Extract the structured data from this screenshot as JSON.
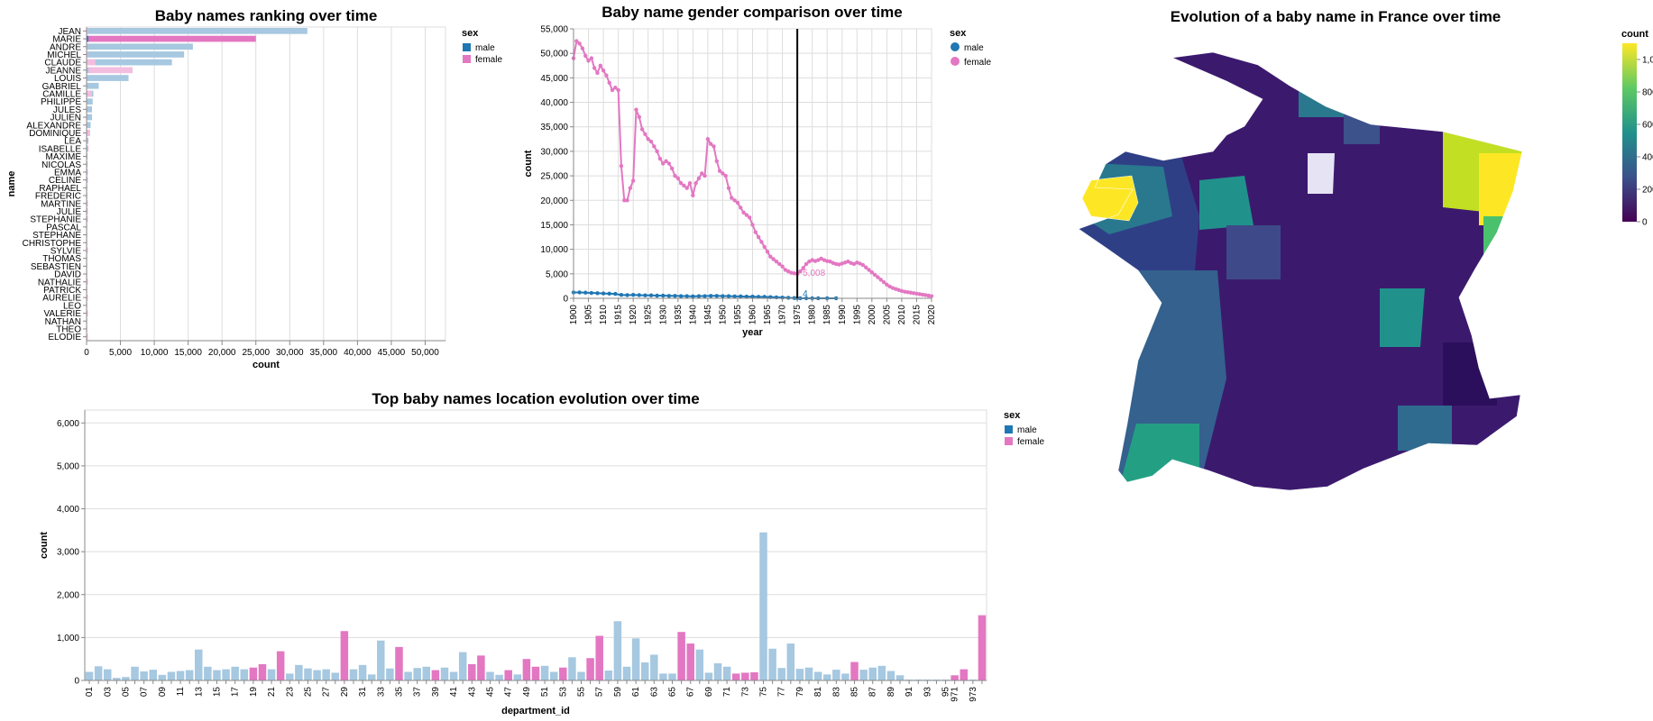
{
  "colors": {
    "male": "#1f77b4",
    "female": "#e377c2",
    "male_light": "#a6c8e0",
    "female_light": "#f3bde0"
  },
  "chart_data": [
    {
      "id": "ranking",
      "type": "bar",
      "title": "Baby names ranking over time",
      "xlabel": "count",
      "ylabel": "name",
      "xlim": [
        0,
        53000
      ],
      "xticks": [
        0,
        5000,
        10000,
        15000,
        20000,
        25000,
        30000,
        35000,
        40000,
        45000,
        50000
      ],
      "xtick_labels": [
        "0",
        "5,000",
        "10,000",
        "15,000",
        "20,000",
        "25,000",
        "30,000",
        "35,000",
        "40,000",
        "45,000",
        "50,000"
      ],
      "grid": true,
      "legend": {
        "title": "sex",
        "entries": [
          "male",
          "female"
        ],
        "position": "right"
      },
      "categories": [
        "JEAN",
        "MARIE",
        "ANDRE",
        "MICHEL",
        "CLAUDE",
        "JEANNE",
        "LOUIS",
        "GABRIEL",
        "CAMILLE",
        "PHILIPPE",
        "JULES",
        "JULIEN",
        "ALEXANDRE",
        "DOMINIQUE",
        "LEA",
        "ISABELLE",
        "MAXIME",
        "NICOLAS",
        "EMMA",
        "CELINE",
        "RAPHAEL",
        "FREDERIC",
        "MARTINE",
        "JULIE",
        "STEPHANIE",
        "PASCAL",
        "STEPHANE",
        "CHRISTOPHE",
        "SYLVIE",
        "THOMAS",
        "SEBASTIEN",
        "DAVID",
        "NATHALIE",
        "PATRICK",
        "AURELIE",
        "LEO",
        "VALERIE",
        "NATHAN",
        "THEO",
        "ELODIE"
      ],
      "series": [
        {
          "name": "male",
          "values": [
            32600,
            250,
            15700,
            14400,
            12600,
            300,
            6200,
            1800,
            1000,
            900,
            800,
            800,
            600,
            500,
            200,
            150,
            150,
            150,
            100,
            100,
            100,
            100,
            50,
            50,
            50,
            50,
            50,
            50,
            50,
            50,
            50,
            50,
            50,
            50,
            50,
            50,
            50,
            50,
            50,
            50
          ]
        },
        {
          "name": "female",
          "values": [
            200,
            25000,
            100,
            200,
            1300,
            6800,
            100,
            100,
            800,
            100,
            100,
            100,
            100,
            400,
            300,
            300,
            100,
            100,
            200,
            200,
            100,
            100,
            200,
            200,
            200,
            100,
            100,
            100,
            200,
            100,
            100,
            100,
            200,
            100,
            200,
            100,
            200,
            100,
            100,
            200
          ]
        }
      ],
      "highlighted": "MARIE"
    },
    {
      "id": "gender",
      "type": "line",
      "title": "Baby name gender comparison over time",
      "xlabel": "year",
      "ylabel": "count",
      "xlim": [
        1900,
        2020
      ],
      "ylim": [
        0,
        55000
      ],
      "yticks": [
        0,
        5000,
        10000,
        15000,
        20000,
        25000,
        30000,
        35000,
        40000,
        45000,
        50000,
        55000
      ],
      "ytick_labels": [
        "0",
        "5,000",
        "10,000",
        "15,000",
        "20,000",
        "25,000",
        "30,000",
        "35,000",
        "40,000",
        "45,000",
        "50,000",
        "55,000"
      ],
      "xticks": [
        1900,
        1905,
        1910,
        1915,
        1920,
        1925,
        1930,
        1935,
        1940,
        1945,
        1950,
        1955,
        1960,
        1965,
        1970,
        1975,
        1980,
        1985,
        1990,
        1995,
        2000,
        2005,
        2010,
        2015,
        2020
      ],
      "grid": true,
      "legend": {
        "title": "sex",
        "entries": [
          "male",
          "female"
        ],
        "position": "right"
      },
      "rule_year": 1975,
      "annotations": [
        {
          "series": "female",
          "year": 1975,
          "label": "5,008"
        },
        {
          "series": "male",
          "year": 1975,
          "label": "4"
        }
      ],
      "series": [
        {
          "name": "female",
          "x": [
            1900,
            1901,
            1902,
            1903,
            1904,
            1905,
            1906,
            1907,
            1908,
            1909,
            1910,
            1911,
            1912,
            1913,
            1914,
            1915,
            1916,
            1917,
            1918,
            1919,
            1920,
            1921,
            1922,
            1923,
            1924,
            1925,
            1926,
            1927,
            1928,
            1929,
            1930,
            1931,
            1932,
            1933,
            1934,
            1935,
            1936,
            1937,
            1938,
            1939,
            1940,
            1941,
            1942,
            1943,
            1944,
            1945,
            1946,
            1947,
            1948,
            1949,
            1950,
            1951,
            1952,
            1953,
            1954,
            1955,
            1956,
            1957,
            1958,
            1959,
            1960,
            1961,
            1962,
            1963,
            1964,
            1965,
            1966,
            1967,
            1968,
            1969,
            1970,
            1971,
            1972,
            1973,
            1974,
            1975,
            1976,
            1977,
            1978,
            1979,
            1980,
            1981,
            1982,
            1983,
            1984,
            1985,
            1986,
            1987,
            1988,
            1989,
            1990,
            1991,
            1992,
            1993,
            1994,
            1995,
            1996,
            1997,
            1998,
            1999,
            2000,
            2001,
            2002,
            2003,
            2004,
            2005,
            2006,
            2007,
            2008,
            2009,
            2010,
            2011,
            2012,
            2013,
            2014,
            2015,
            2016,
            2017,
            2018,
            2019,
            2020
          ],
          "y": [
            49000,
            52500,
            52000,
            51000,
            49500,
            48500,
            49000,
            47000,
            46000,
            47500,
            46500,
            45500,
            44000,
            42500,
            43000,
            42500,
            27000,
            20000,
            20000,
            22500,
            24000,
            38500,
            37000,
            34500,
            33500,
            32500,
            32000,
            31000,
            30000,
            28500,
            27500,
            28000,
            27500,
            26500,
            25000,
            24500,
            23500,
            23000,
            22500,
            23500,
            21000,
            23500,
            24500,
            25500,
            25000,
            32500,
            31500,
            31000,
            28000,
            26000,
            25500,
            25000,
            22500,
            20500,
            20000,
            19500,
            18500,
            17500,
            17000,
            16500,
            15000,
            13500,
            12500,
            11500,
            10500,
            9500,
            8500,
            8000,
            7500,
            7000,
            6500,
            5800,
            5500,
            5200,
            5100,
            5008,
            5500,
            6200,
            7000,
            7500,
            7800,
            7600,
            7800,
            8100,
            7800,
            7600,
            7500,
            7200,
            7000,
            6900,
            7100,
            7300,
            7500,
            7200,
            7000,
            7300,
            7100,
            6800,
            6300,
            5800,
            5300,
            4800,
            4300,
            3800,
            3300,
            2800,
            2400,
            2100,
            1900,
            1700,
            1500,
            1350,
            1250,
            1150,
            1050,
            950,
            850,
            750,
            650,
            550,
            450
          ]
        },
        {
          "name": "male",
          "x": [
            1900,
            1902,
            1904,
            1906,
            1908,
            1910,
            1912,
            1914,
            1916,
            1918,
            1920,
            1922,
            1924,
            1926,
            1928,
            1930,
            1932,
            1934,
            1936,
            1938,
            1940,
            1942,
            1944,
            1946,
            1948,
            1950,
            1952,
            1954,
            1956,
            1958,
            1960,
            1962,
            1964,
            1966,
            1968,
            1970,
            1972,
            1974,
            1975,
            1976,
            1978,
            1980,
            1982,
            1985,
            1988
          ],
          "y": [
            1200,
            1200,
            1150,
            1100,
            1050,
            1000,
            950,
            900,
            700,
            650,
            700,
            650,
            600,
            600,
            550,
            550,
            500,
            500,
            450,
            450,
            400,
            450,
            450,
            500,
            500,
            450,
            450,
            400,
            400,
            350,
            350,
            300,
            300,
            250,
            200,
            150,
            100,
            50,
            4,
            10,
            10,
            10,
            10,
            10,
            10
          ]
        }
      ]
    },
    {
      "id": "map",
      "type": "heatmap",
      "title": "Evolution of a baby name in France over time",
      "legend": {
        "title": "count",
        "ticks": [
          "0",
          "200",
          "400",
          "600",
          "800",
          "1,000"
        ],
        "position": "right"
      },
      "color_range": [
        0,
        1100
      ]
    },
    {
      "id": "location",
      "type": "bar",
      "title": "Top baby names location evolution over time",
      "xlabel": "department_id",
      "ylabel": "count",
      "ylim": [
        0,
        6300
      ],
      "yticks": [
        0,
        1000,
        2000,
        3000,
        4000,
        5000,
        6000
      ],
      "ytick_labels": [
        "0",
        "1,000",
        "2,000",
        "3,000",
        "4,000",
        "5,000",
        "6,000"
      ],
      "grid": true,
      "legend": {
        "title": "sex",
        "entries": [
          "male",
          "female"
        ],
        "position": "right"
      },
      "categories": [
        "01",
        "02",
        "03",
        "04",
        "05",
        "06",
        "07",
        "08",
        "09",
        "10",
        "11",
        "12",
        "13",
        "14",
        "15",
        "16",
        "17",
        "18",
        "19",
        "20",
        "21",
        "22",
        "23",
        "24",
        "25",
        "26",
        "27",
        "28",
        "29",
        "30",
        "31",
        "32",
        "33",
        "34",
        "35",
        "36",
        "37",
        "38",
        "39",
        "40",
        "41",
        "42",
        "43",
        "44",
        "45",
        "46",
        "47",
        "48",
        "49",
        "50",
        "51",
        "52",
        "53",
        "54",
        "55",
        "56",
        "57",
        "58",
        "59",
        "60",
        "61",
        "62",
        "63",
        "64",
        "65",
        "66",
        "67",
        "68",
        "69",
        "70",
        "71",
        "72",
        "73",
        "74",
        "75",
        "76",
        "77",
        "78",
        "79",
        "80",
        "81",
        "82",
        "83",
        "84",
        "85",
        "86",
        "87",
        "88",
        "89",
        "90",
        "91",
        "92",
        "93",
        "94",
        "95",
        "971",
        "972",
        "973",
        "974"
      ],
      "tick_labels": [
        "01",
        "03",
        "05",
        "07",
        "09",
        "11",
        "13",
        "15",
        "17",
        "19",
        "21",
        "23",
        "25",
        "27",
        "29",
        "31",
        "33",
        "35",
        "37",
        "39",
        "41",
        "43",
        "45",
        "47",
        "49",
        "51",
        "53",
        "55",
        "57",
        "59",
        "61",
        "63",
        "65",
        "67",
        "69",
        "71",
        "73",
        "75",
        "77",
        "79",
        "81",
        "83",
        "85",
        "87",
        "89",
        "91",
        "93",
        "95",
        "971",
        "973"
      ],
      "values": [
        200,
        330,
        260,
        60,
        80,
        320,
        210,
        250,
        130,
        200,
        220,
        240,
        720,
        320,
        240,
        260,
        320,
        260,
        300,
        380,
        260,
        680,
        160,
        360,
        280,
        240,
        260,
        180,
        1150,
        260,
        360,
        140,
        930,
        280,
        780,
        200,
        290,
        320,
        240,
        300,
        200,
        660,
        380,
        580,
        200,
        130,
        240,
        140,
        500,
        320,
        340,
        200,
        300,
        540,
        200,
        520,
        1040,
        230,
        1380,
        320,
        980,
        420,
        600,
        160,
        160,
        1130,
        860,
        720,
        180,
        400,
        320,
        160,
        180,
        190,
        3450,
        740,
        290,
        860,
        270,
        300,
        200,
        140,
        250,
        160,
        430,
        250,
        300,
        340,
        220,
        120,
        20,
        20,
        20,
        20,
        20,
        120,
        260,
        20,
        1520
      ],
      "female_departments": [
        "19",
        "20",
        "22",
        "29",
        "35",
        "39",
        "43",
        "44",
        "47",
        "49",
        "50",
        "53",
        "56",
        "57",
        "66",
        "67",
        "72",
        "73",
        "74",
        "85",
        "971",
        "972",
        "974"
      ]
    }
  ]
}
